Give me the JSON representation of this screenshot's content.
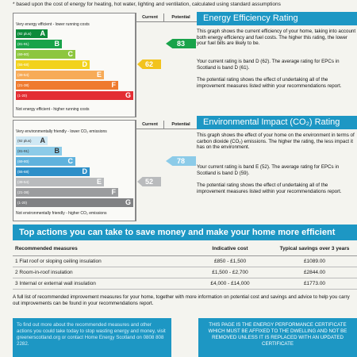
{
  "top_note": "* based upon the cost of energy for heating, hot water, lighting and ventilation, calculated using standard assumptions",
  "eer_chart": {
    "caption_top": "Very energy efficient - lower running costs",
    "caption_bottom": "Not energy efficient - higher running costs",
    "col_current": "Current",
    "col_potential": "Potential",
    "bands": [
      {
        "range": "(92 plus)",
        "letter": "A",
        "color": "#0c8a3a",
        "frac": 0.27
      },
      {
        "range": "(81-91)",
        "letter": "B",
        "color": "#19a34a",
        "frac": 0.39
      },
      {
        "range": "(69-80)",
        "letter": "C",
        "color": "#8dc63f",
        "frac": 0.51
      },
      {
        "range": "(55-68)",
        "letter": "D",
        "color": "#f2d21d",
        "frac": 0.63
      },
      {
        "range": "(39-54)",
        "letter": "E",
        "color": "#f7ab58",
        "frac": 0.75
      },
      {
        "range": "(21-38)",
        "letter": "F",
        "color": "#ef7a2e",
        "frac": 0.87
      },
      {
        "range": "(1-20)",
        "letter": "G",
        "color": "#e32d33",
        "frac": 1.0
      }
    ],
    "current": "62",
    "current_band": 3,
    "current_color": "#f2c31d",
    "potential": "83",
    "potential_band": 1,
    "potential_color": "#19a34a"
  },
  "ei_chart": {
    "caption_top": "Very environmentally friendly - lower CO₂ emissions",
    "caption_bottom": "Not environmentally friendly - higher CO₂ emissions",
    "col_current": "Current",
    "col_potential": "Potential",
    "bands": [
      {
        "range": "(92 plus)",
        "letter": "A",
        "color": "#cfe8f4",
        "frac": 0.27
      },
      {
        "range": "(81-91)",
        "letter": "B",
        "color": "#8ccbe8",
        "frac": 0.39
      },
      {
        "range": "(69-80)",
        "letter": "C",
        "color": "#5fb2dd",
        "frac": 0.51
      },
      {
        "range": "(55-68)",
        "letter": "D",
        "color": "#2d8fc8",
        "frac": 0.63
      },
      {
        "range": "(39-54)",
        "letter": "E",
        "color": "#b9bbbd",
        "frac": 0.75
      },
      {
        "range": "(21-38)",
        "letter": "F",
        "color": "#9b9c9e",
        "frac": 0.87
      },
      {
        "range": "(1-20)",
        "letter": "G",
        "color": "#808183",
        "frac": 1.0
      }
    ],
    "current": "52",
    "current_band": 4,
    "current_color": "#b9bbbd",
    "potential": "78",
    "potential_band": 2,
    "potential_color": "#8ccbe8"
  },
  "eer_text": {
    "heading": "Energy Efficiency Rating",
    "p1": "This graph shows the current efficiency of your home, taking into account both energy efficiency and fuel costs. The higher this rating, the lower your fuel bills are likely to be.",
    "p2": "Your current rating is band D (62). The average rating for EPCs in Scotland is band D (61).",
    "p3": "The potential rating shows the effect of undertaking all of the improvement measures listed within your recommendations report."
  },
  "ei_text": {
    "heading": "Environmental Impact (CO₂) Rating",
    "p1": "This graph shows the effect of your home on the environment in terms of carbon dioxide (CO₂) emissions. The higher the rating, the less impact it has on the environment.",
    "p2": "Your current rating is band E (52). The average rating for EPCs in Scotland is band D (59).",
    "p3": "The potential rating shows the effect of undertaking all of the improvement measures listed within your recommendations report."
  },
  "actions": {
    "heading": "Top actions you can take to save money and make your home more efficient",
    "col_measures": "Recommended measures",
    "col_cost": "Indicative cost",
    "col_savings": "Typical savings over 3 years",
    "rows": [
      {
        "measure": "1 Flat roof or sloping ceiling insulation",
        "cost": "£850 - £1,500",
        "savings": "£1089.00"
      },
      {
        "measure": "2 Room-in-roof insulation",
        "cost": "£1,500 - £2,700",
        "savings": "£2844.00"
      },
      {
        "measure": "3 Internal or external wall insulation",
        "cost": "£4,000 - £14,000",
        "savings": "£1773.00"
      }
    ]
  },
  "footnote": "A full list of recommended improvement measures for your home, together with more information on potential cost and savings and advice to help you carry out improvements can be found in your recommendations report.",
  "info_left": "To find out more about the recommended measures and other actions you could take today to stop wasting energy and money, visit greenerscotland.org or contact Home Energy Scotland on 0808 808 2282.",
  "info_right": "THIS PAGE IS THE ENERGY PERFORMANCE CERTIFICATE WHICH MUST BE AFFIXED TO THE DWELLING AND NOT BE REMOVED UNLESS IT IS REPLACED WITH AN UPDATED CERTIFICATE"
}
